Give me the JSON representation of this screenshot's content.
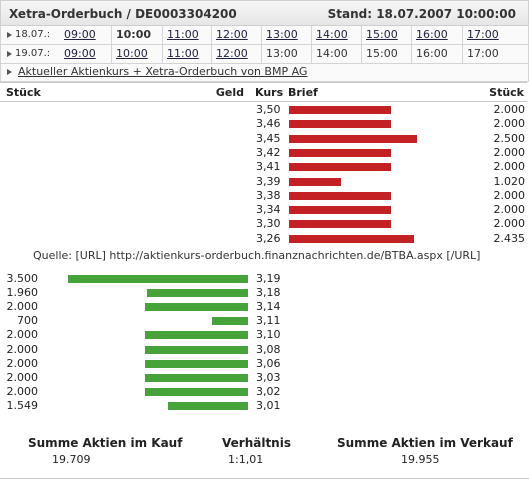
{
  "header": {
    "title": "Xetra-Orderbuch / DE0003304200",
    "stand": "Stand: 18.07.2007 10:00:00"
  },
  "time_rows": [
    {
      "date": "18.07.:",
      "times": [
        {
          "label": "09:00",
          "type": "link"
        },
        {
          "label": "10:00",
          "type": "current"
        },
        {
          "label": "11:00",
          "type": "link"
        },
        {
          "label": "12:00",
          "type": "link"
        },
        {
          "label": "13:00",
          "type": "link"
        },
        {
          "label": "14:00",
          "type": "link"
        },
        {
          "label": "15:00",
          "type": "link"
        },
        {
          "label": "16:00",
          "type": "link"
        },
        {
          "label": "17:00",
          "type": "link"
        }
      ]
    },
    {
      "date": "19.07.:",
      "times": [
        {
          "label": "09:00",
          "type": "link"
        },
        {
          "label": "10:00",
          "type": "link"
        },
        {
          "label": "11:00",
          "type": "link"
        },
        {
          "label": "12:00",
          "type": "link"
        },
        {
          "label": "13:00",
          "type": "plain"
        },
        {
          "label": "14:00",
          "type": "plain"
        },
        {
          "label": "15:00",
          "type": "plain"
        },
        {
          "label": "16:00",
          "type": "plain"
        },
        {
          "label": "17:00",
          "type": "plain"
        }
      ]
    }
  ],
  "info_link": "Aktueller Aktienkurs + Xetra-Orderbuch von BMP AG",
  "columns": {
    "stueck_left": "Stück",
    "geld": "Geld",
    "kurs": "Kurs",
    "brief": "Brief",
    "stueck_right": "Stück"
  },
  "ask_rows": [
    {
      "kurs": "3,50",
      "stueck": "2.000",
      "volume": 2000
    },
    {
      "kurs": "3,46",
      "stueck": "2.000",
      "volume": 2000
    },
    {
      "kurs": "3,45",
      "stueck": "2.500",
      "volume": 2500
    },
    {
      "kurs": "3,42",
      "stueck": "2.000",
      "volume": 2000
    },
    {
      "kurs": "3,41",
      "stueck": "2.000",
      "volume": 2000
    },
    {
      "kurs": "3,39",
      "stueck": "1.020",
      "volume": 1020
    },
    {
      "kurs": "3,38",
      "stueck": "2.000",
      "volume": 2000
    },
    {
      "kurs": "3,34",
      "stueck": "2.000",
      "volume": 2000
    },
    {
      "kurs": "3,30",
      "stueck": "2.000",
      "volume": 2000
    },
    {
      "kurs": "3,26",
      "stueck": "2.435",
      "volume": 2435
    }
  ],
  "source_line": "Quelle: [URL] http://aktienkurs-orderbuch.finanznachrichten.de/BTBA.aspx [/URL]",
  "bid_rows": [
    {
      "stueck": "3.500",
      "kurs": "3,19",
      "volume": 3500
    },
    {
      "stueck": "1.960",
      "kurs": "3,18",
      "volume": 1960
    },
    {
      "stueck": "2.000",
      "kurs": "3,14",
      "volume": 2000
    },
    {
      "stueck": "700",
      "kurs": "3,11",
      "volume": 700
    },
    {
      "stueck": "2.000",
      "kurs": "3,10",
      "volume": 2000
    },
    {
      "stueck": "2.000",
      "kurs": "3,08",
      "volume": 2000
    },
    {
      "stueck": "2.000",
      "kurs": "3,06",
      "volume": 2000
    },
    {
      "stueck": "2.000",
      "kurs": "3,03",
      "volume": 2000
    },
    {
      "stueck": "2.000",
      "kurs": "3,02",
      "volume": 2000
    },
    {
      "stueck": "1.549",
      "kurs": "3,01",
      "volume": 1549
    }
  ],
  "summary": {
    "kauf_label": "Summe Aktien im Kauf",
    "kauf_value": "19.709",
    "verhaeltnis_label": "Verhältnis",
    "verhaeltnis_value": "1:1,01",
    "verkauf_label": "Summe Aktien im Verkauf",
    "verkauf_value": "19.955"
  },
  "colors": {
    "ask_bar": "#c42124",
    "bid_bar": "#45a33a"
  }
}
